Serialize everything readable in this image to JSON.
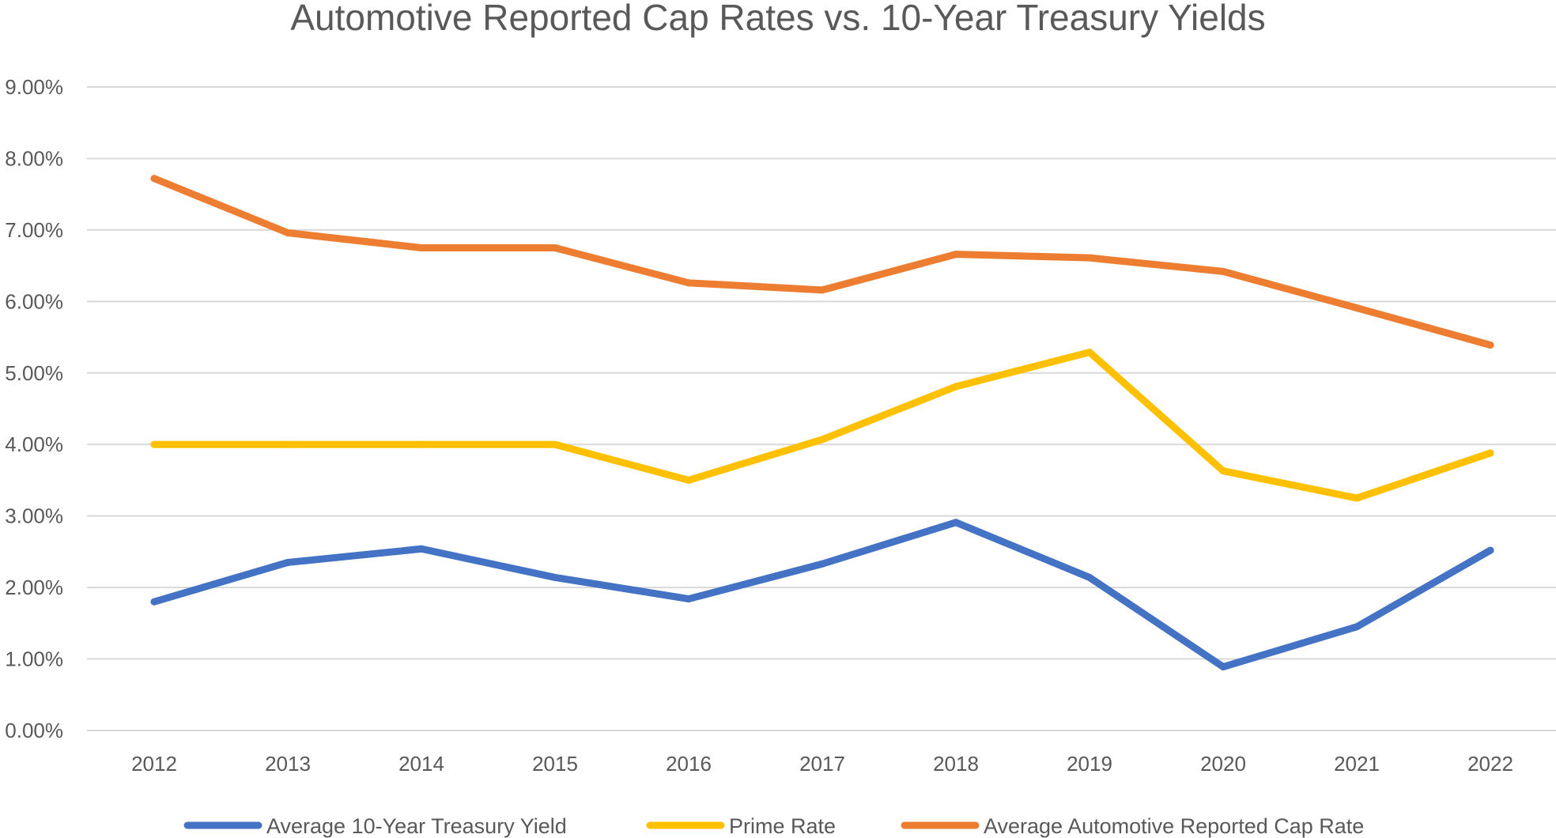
{
  "chart_data": {
    "type": "line",
    "title": "Automotive Reported Cap Rates vs. 10-Year Treasury Yields",
    "xlabel": "",
    "ylabel": "",
    "categories": [
      "2012",
      "2013",
      "2014",
      "2015",
      "2016",
      "2017",
      "2018",
      "2019",
      "2020",
      "2021",
      "2022"
    ],
    "y_ticks": [
      "0.00%",
      "1.00%",
      "2.00%",
      "3.00%",
      "4.00%",
      "5.00%",
      "6.00%",
      "7.00%",
      "8.00%",
      "9.00%"
    ],
    "ylim": [
      0,
      9
    ],
    "grid": true,
    "legend_position": "bottom",
    "series": [
      {
        "name": "Average 10-Year Treasury Yield",
        "color": "#4472C4",
        "values": [
          1.8,
          2.35,
          2.54,
          2.14,
          1.84,
          2.33,
          2.91,
          2.14,
          0.89,
          1.45,
          2.52
        ]
      },
      {
        "name": "Prime Rate",
        "color": "#FFC000",
        "values": [
          4.0,
          4.0,
          4.0,
          4.0,
          3.5,
          4.07,
          4.81,
          5.29,
          3.63,
          3.25,
          3.88
        ]
      },
      {
        "name": "Average Automotive Reported Cap Rate",
        "color": "#ED7D31",
        "values": [
          7.72,
          6.96,
          6.75,
          6.75,
          6.26,
          6.16,
          6.66,
          6.61,
          6.42,
          5.91,
          5.39
        ]
      }
    ]
  }
}
